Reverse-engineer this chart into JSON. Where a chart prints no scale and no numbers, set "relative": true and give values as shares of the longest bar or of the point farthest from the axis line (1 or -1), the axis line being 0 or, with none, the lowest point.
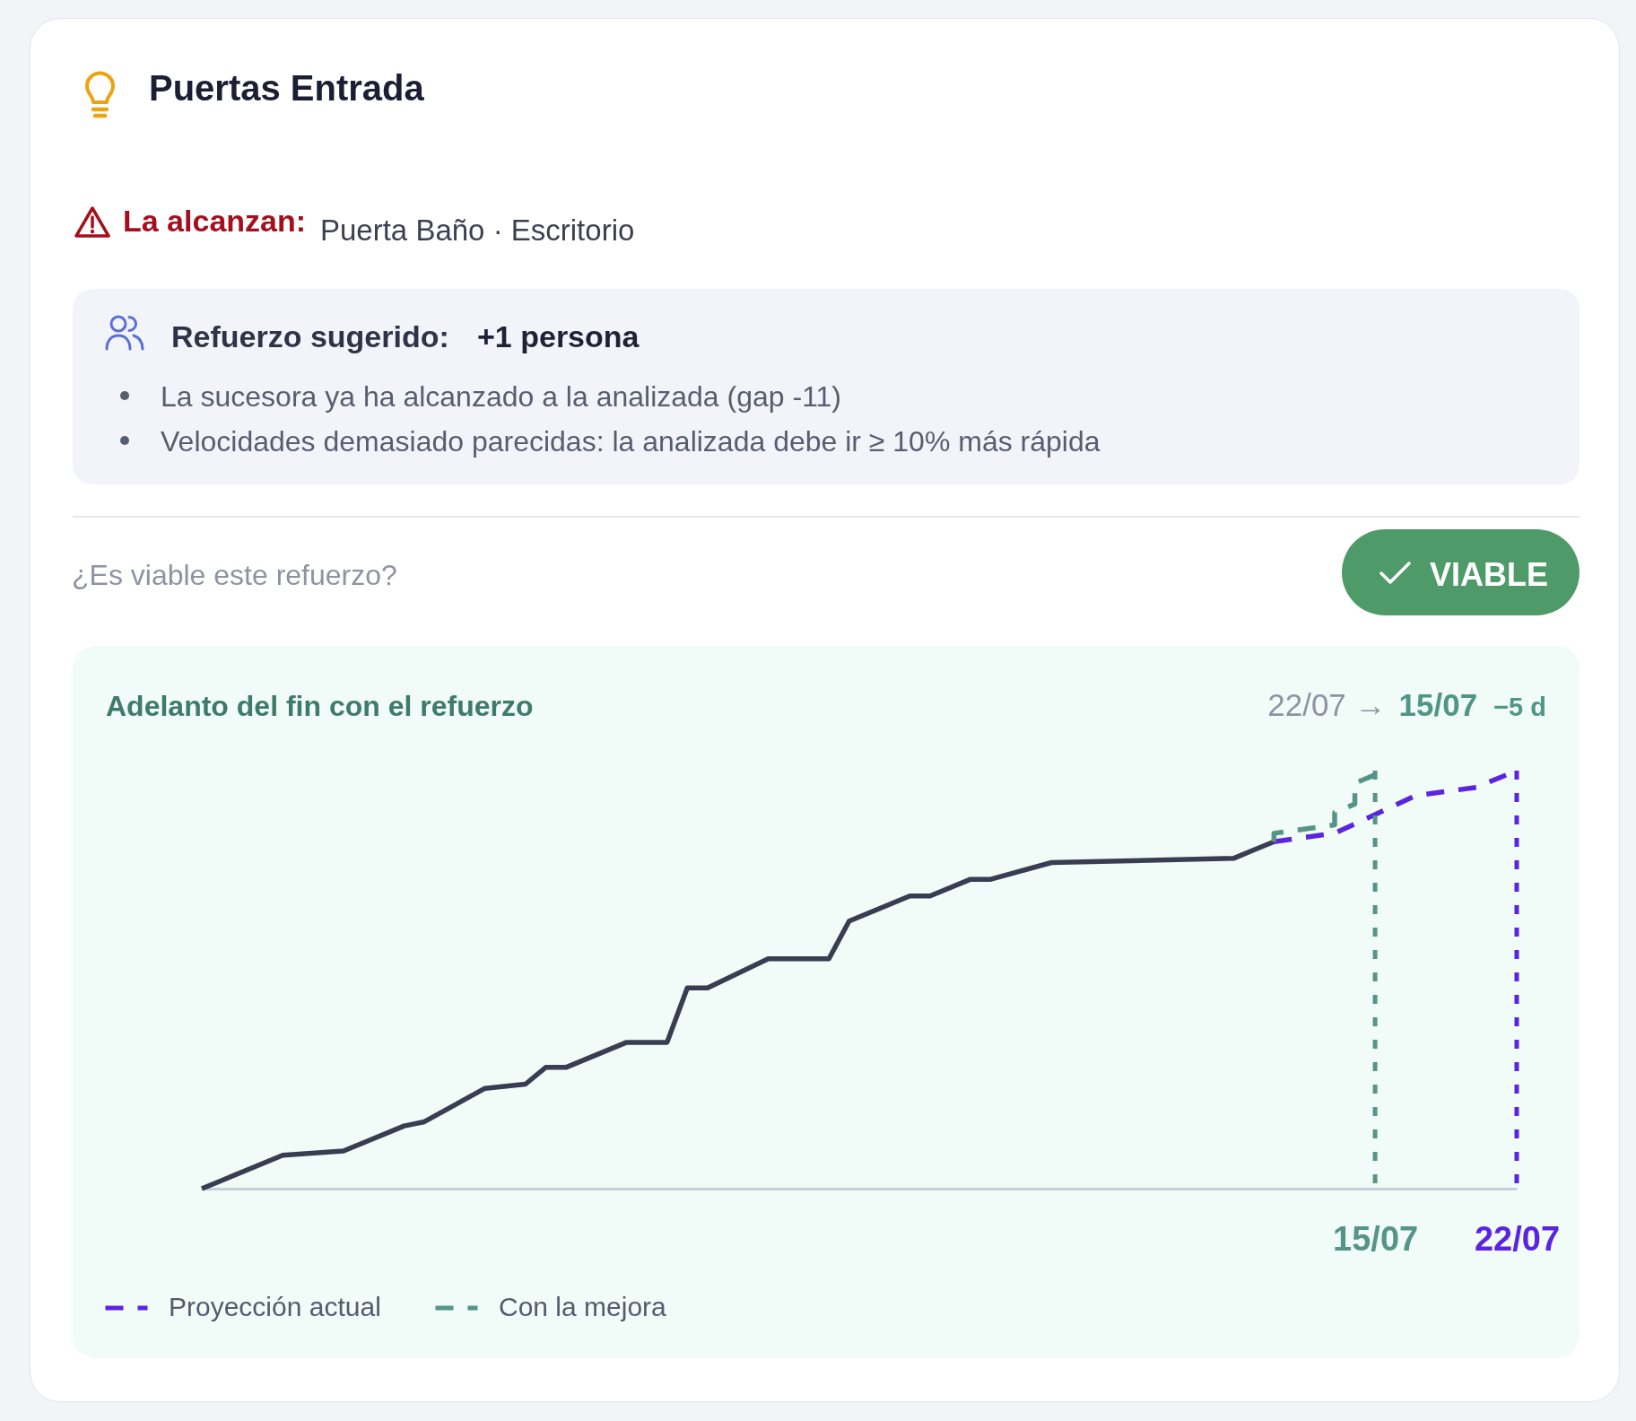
{
  "chart_data": {
    "type": "line",
    "title": "Puertas Entrada",
    "subtitle": "Adelanto del fin con el refuerzo",
    "annotations": [
      "La alcanzan:",
      "Puerta Baño · Escritorio",
      "Refuerzo sugerido:",
      "+1 persona",
      "La sucesora ya ha alcanzado a la analizada (gap -11)",
      "Velocidades demasiado parecidas: la analizada debe ir ≥ 10% más rápida",
      "¿Es viable este refuerzo?",
      "VIABLE",
      "22/07 →",
      "15/07",
      "−5 d"
    ],
    "relative": true,
    "xlim": [
      "--05-18",
      "--07-22"
    ],
    "xticks": [
      {
        "value": "--07-15",
        "label": "15/07"
      },
      {
        "value": "--07-22",
        "label": "22/07"
      }
    ],
    "tick_labels": "x",
    "legend": "bottom left",
    "series": [
      {
        "color": "#383d52",
        "line_style": "solid",
        "x": [
          "--05-18",
          "--05-19",
          "--05-22",
          "--05-25",
          "--05-28",
          "--05-29",
          "--06-01",
          "--06-03",
          "--06-04",
          "--06-05",
          "--06-08",
          "--06-10",
          "--06-11",
          "--06-12",
          "--06-15",
          "--06-18",
          "--06-19",
          "--06-22",
          "--06-23",
          "--06-25",
          "--06-26",
          "--06-29",
          "--07-08",
          "--07-09",
          "--07-10"
        ],
        "values": [
          0,
          0.02,
          0.08,
          0.09,
          0.15,
          0.16,
          0.24,
          0.25,
          0.29,
          0.29,
          0.35,
          0.35,
          0.48,
          0.48,
          0.55,
          0.55,
          0.64,
          0.7,
          0.7,
          0.74,
          0.74,
          0.78,
          0.79,
          0.81,
          0.83
        ]
      },
      {
        "name": "Proyección actual",
        "color": "#5b24e0",
        "line_style": "dashed",
        "x": [
          "--07-10",
          "--07-13",
          "--07-17",
          "--07-20",
          "--07-22"
        ],
        "values": [
          0.83,
          0.85,
          0.94,
          0.96,
          1
        ]
      },
      {
        "name": "Con la mejora",
        "color": "#559486",
        "line_style": "dashed",
        "x": [
          "--07-10",
          "--07-10",
          "--07-13",
          "--07-13",
          "--07-14",
          "--07-14",
          "--07-15"
        ],
        "values": [
          0.83,
          0.85,
          0.87,
          0.9,
          0.92,
          0.97,
          0.99
        ]
      }
    ],
    "ref_lines": [
      {
        "axis": "x",
        "value": "--07-15",
        "color": "#559486",
        "line_style": "dotted"
      },
      {
        "axis": "x",
        "value": "--07-22",
        "color": "#5b24e0",
        "line_style": "dotted"
      }
    ]
  }
}
